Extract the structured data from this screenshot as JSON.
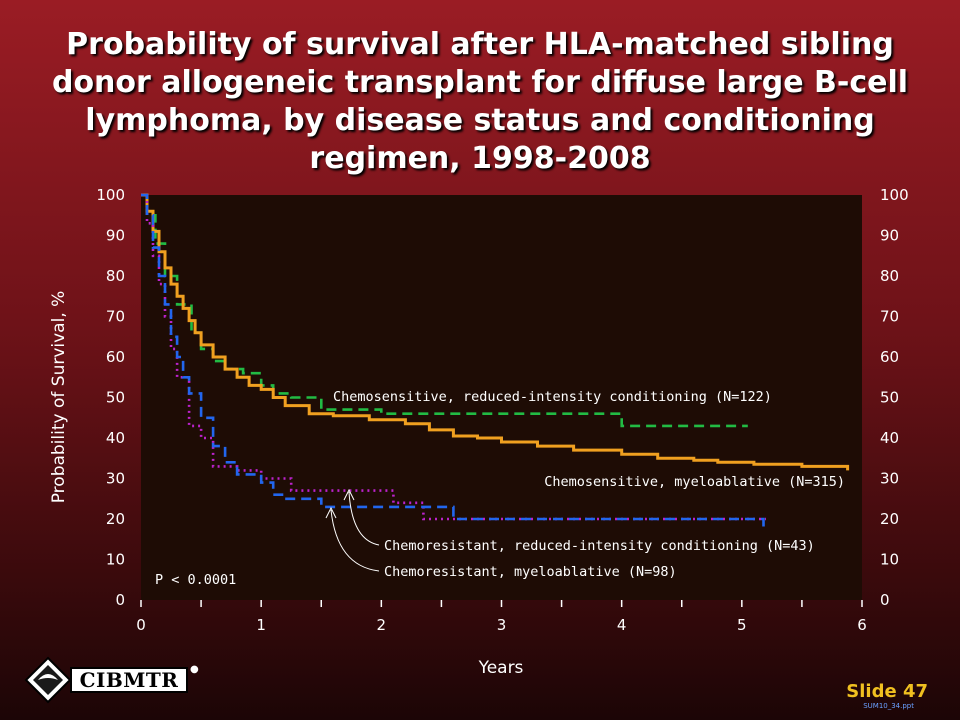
{
  "slide": {
    "title": "Probability of survival after HLA-matched sibling donor allogeneic transplant for diffuse large B-cell lymphoma, by disease status and conditioning regimen, 1998-2008",
    "slide_number": "Slide 47",
    "file_code": "SUM10_34.ppt",
    "logo_text": "CIBMTR"
  },
  "colors": {
    "plot_background": "#1e0c05",
    "chemosensitive_ric": "#22bb44",
    "chemosensitive_mac": "#f0a020",
    "chemoresistant_ric": "#bb22cc",
    "chemoresistant_mac": "#2266ee"
  },
  "chart_data": {
    "type": "line",
    "step": true,
    "xlabel": "Years",
    "ylabel": "Probability of Survival, %",
    "xlim": [
      0,
      6
    ],
    "ylim": [
      0,
      100
    ],
    "x_ticks": [
      "0",
      "1",
      "2",
      "3",
      "4",
      "5",
      "6"
    ],
    "y_ticks": [
      "0",
      "10",
      "20",
      "30",
      "40",
      "50",
      "60",
      "70",
      "80",
      "90",
      "100"
    ],
    "grid": false,
    "annotations": [
      "P < 0.0001"
    ],
    "series": [
      {
        "name": "Chemosensitive, reduced-intensity conditioning (N=122)",
        "color": "#22bb44",
        "style": "dashed",
        "x": [
          0,
          0.05,
          0.12,
          0.2,
          0.3,
          0.42,
          0.5,
          0.6,
          0.7,
          0.85,
          1.0,
          1.1,
          1.25,
          1.5,
          2.0,
          3.0,
          3.99,
          4.0,
          5.05
        ],
        "y": [
          100,
          95,
          88,
          80,
          73,
          66,
          62,
          59,
          57,
          56,
          53,
          51,
          50,
          47,
          46,
          46,
          46,
          43,
          43
        ]
      },
      {
        "name": "Chemosensitive, myeloablative (N=315)",
        "color": "#f0a020",
        "style": "solid",
        "x": [
          0,
          0.05,
          0.1,
          0.15,
          0.2,
          0.25,
          0.3,
          0.35,
          0.4,
          0.45,
          0.5,
          0.6,
          0.7,
          0.8,
          0.9,
          1.0,
          1.1,
          1.2,
          1.4,
          1.6,
          1.9,
          2.2,
          2.4,
          2.6,
          2.8,
          3.0,
          3.3,
          3.6,
          4.0,
          4.3,
          4.6,
          4.8,
          5.1,
          5.5,
          5.88
        ],
        "y": [
          100,
          96,
          91,
          86,
          82,
          78,
          75,
          72,
          69,
          66,
          63,
          60,
          57,
          55,
          53,
          52,
          50,
          48,
          46,
          45.5,
          44.5,
          43.5,
          42,
          40.5,
          40,
          39,
          38,
          37,
          36,
          35,
          34.5,
          34,
          33.5,
          33,
          32
        ]
      },
      {
        "name": "Chemoresistant, reduced-intensity conditioning (N=43)",
        "color": "#bb22cc",
        "style": "dotted",
        "x": [
          0,
          0.05,
          0.1,
          0.15,
          0.2,
          0.25,
          0.3,
          0.4,
          0.5,
          0.6,
          0.8,
          1.0,
          1.25,
          1.5,
          2.1,
          2.35,
          3.0,
          4.0,
          5.0,
          5.2
        ],
        "y": [
          100,
          93,
          85,
          78,
          70,
          62,
          55,
          43,
          40,
          33,
          32,
          30,
          27,
          27,
          24,
          20,
          20,
          20,
          20,
          20
        ]
      },
      {
        "name": "Chemoresistant, myeloablative (N=98)",
        "color": "#2266ee",
        "style": "dashed",
        "x": [
          0,
          0.05,
          0.1,
          0.15,
          0.2,
          0.25,
          0.3,
          0.35,
          0.4,
          0.5,
          0.6,
          0.7,
          0.8,
          1.0,
          1.1,
          1.2,
          1.5,
          2.0,
          2.6,
          2.6,
          3.0,
          4.0,
          5.0,
          5.18
        ],
        "y": [
          100,
          95,
          87,
          80,
          73,
          65,
          60,
          55,
          51,
          45,
          38,
          34,
          31,
          29,
          26,
          25,
          23,
          23,
          23,
          20,
          20,
          20,
          20,
          18
        ]
      }
    ]
  }
}
